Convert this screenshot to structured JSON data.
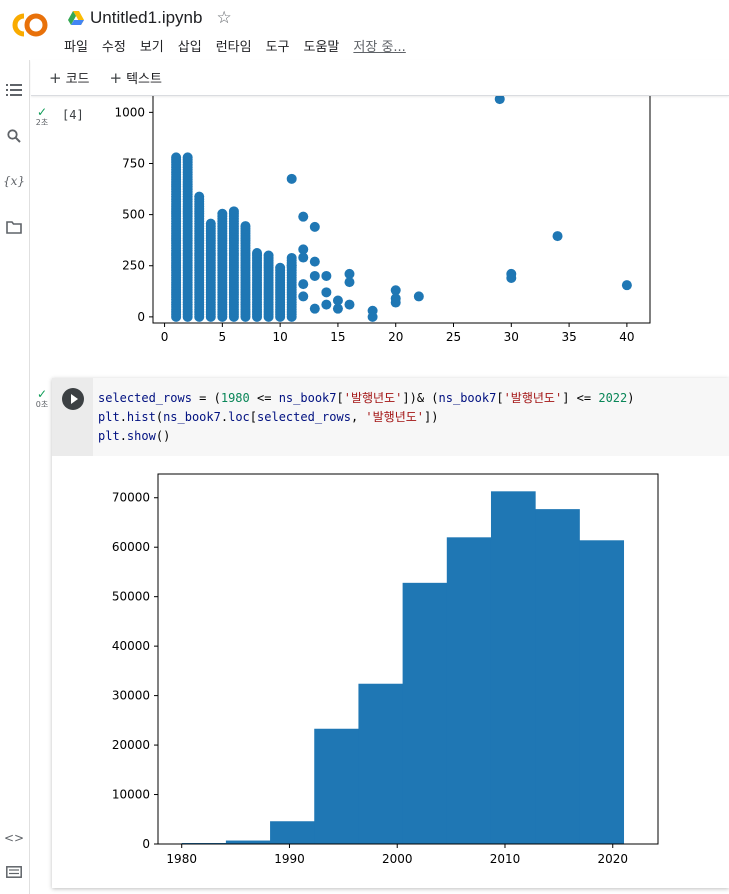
{
  "header": {
    "title": "Untitled1.ipynb",
    "menu": [
      "파일",
      "수정",
      "보기",
      "삽입",
      "런타임",
      "도구",
      "도움말"
    ],
    "saving_status": "저장 중..."
  },
  "toolbar": {
    "add_code": "코드",
    "add_text": "텍스트"
  },
  "icons": {
    "logo": "colab-logo",
    "drive": "drive-icon",
    "star": "star-icon",
    "rail": [
      "toc-icon",
      "search-icon",
      "variables-icon",
      "files-icon",
      "code-snippets-icon",
      "terminal-icon"
    ],
    "run": "play-icon"
  },
  "cell1": {
    "exec_time": "2초",
    "exec_count": "[4]"
  },
  "cell2": {
    "exec_time": "0초",
    "code_lines": [
      "selected_rows = (1980 <= ns_book7['발행년도'])& (ns_book7['발행년도'] <= 2022)",
      "plt.hist(ns_book7.loc[selected_rows, '발행년도'])",
      "plt.show()"
    ]
  },
  "chart_data": [
    {
      "type": "scatter",
      "xlim": [
        -1,
        42
      ],
      "ylim": [
        -30,
        1080
      ],
      "xticks": [
        0,
        5,
        10,
        15,
        20,
        25,
        30,
        35,
        40
      ],
      "yticks": [
        0,
        250,
        500,
        750,
        1000
      ],
      "color": "#1f77b4",
      "dense_columns": [
        {
          "x": 1,
          "ymax": 780
        },
        {
          "x": 2,
          "ymax": 780
        },
        {
          "x": 3,
          "ymax": 590
        },
        {
          "x": 4,
          "ymax": 460
        },
        {
          "x": 5,
          "ymax": 510
        },
        {
          "x": 6,
          "ymax": 520
        },
        {
          "x": 7,
          "ymax": 450
        },
        {
          "x": 8,
          "ymax": 320
        },
        {
          "x": 9,
          "ymax": 300
        },
        {
          "x": 10,
          "ymax": 250
        },
        {
          "x": 11,
          "ymax": 290
        }
      ],
      "points": [
        [
          11,
          675
        ],
        [
          12,
          490
        ],
        [
          12,
          330
        ],
        [
          13,
          440
        ],
        [
          12,
          290
        ],
        [
          11,
          250
        ],
        [
          13,
          270
        ],
        [
          14,
          200
        ],
        [
          14,
          60
        ],
        [
          15,
          40
        ],
        [
          16,
          210
        ],
        [
          16,
          170
        ],
        [
          16,
          60
        ],
        [
          18,
          30
        ],
        [
          18,
          0
        ],
        [
          20,
          130
        ],
        [
          20,
          90
        ],
        [
          20,
          70
        ],
        [
          22,
          100
        ],
        [
          29,
          1065
        ],
        [
          30,
          210
        ],
        [
          30,
          190
        ],
        [
          34,
          395
        ],
        [
          40,
          155
        ],
        [
          12,
          100
        ],
        [
          13,
          40
        ],
        [
          12,
          160
        ],
        [
          14,
          120
        ],
        [
          15,
          80
        ],
        [
          13,
          200
        ]
      ]
    },
    {
      "type": "bar",
      "subtype": "histogram",
      "xlim": [
        1977.8,
        2024.2
      ],
      "ylim": [
        0,
        74800
      ],
      "xticks": [
        1980,
        1990,
        2000,
        2010,
        2020
      ],
      "yticks": [
        0,
        10000,
        20000,
        30000,
        40000,
        50000,
        60000,
        70000
      ],
      "bin_start": 1980,
      "bin_width": 4.1,
      "values": [
        200,
        700,
        4600,
        23300,
        32400,
        52800,
        62000,
        71300,
        67700,
        61400
      ],
      "color": "#1f77b4"
    }
  ]
}
